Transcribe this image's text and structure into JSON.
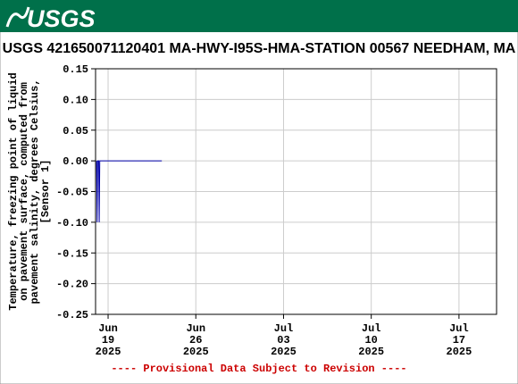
{
  "banner": "USGS",
  "chart_data": {
    "type": "line",
    "title": "USGS 421650071120401 MA-HWY-I95S-HMA-STATION 00567 NEEDHAM, MA",
    "ylabel": [
      "Temperature, freezing point of liquid",
      "on pavement surface, computed from",
      "pavement salinity, degrees Celsius,",
      "[Sensor 1]"
    ],
    "footer": "---- Provisional Data Subject to Revision ----",
    "series": [
      {
        "color": "#0000aa",
        "x": [
          "2025-06-18T02:00",
          "2025-06-18T03:00",
          "2025-06-18T04:00",
          "2025-06-18T06:00",
          "2025-06-18T07:00",
          "2025-06-18T08:00",
          "2025-06-23T07:00"
        ],
        "values": [
          0,
          -0.1,
          0,
          0,
          -0.1,
          0,
          0
        ]
      }
    ],
    "xlim": [
      "2025-06-18T00:00",
      "2025-07-20T00:00"
    ],
    "xticks": [
      {
        "value": "2025-06-19T00:00",
        "label": [
          "Jun",
          "19",
          "2025"
        ]
      },
      {
        "value": "2025-06-26T00:00",
        "label": [
          "Jun",
          "26",
          "2025"
        ]
      },
      {
        "value": "2025-07-03T00:00",
        "label": [
          "Jul",
          "03",
          "2025"
        ]
      },
      {
        "value": "2025-07-10T00:00",
        "label": [
          "Jul",
          "10",
          "2025"
        ]
      },
      {
        "value": "2025-07-17T00:00",
        "label": [
          "Jul",
          "17",
          "2025"
        ]
      }
    ],
    "ylim": [
      -0.25,
      0.15
    ],
    "yticks": [
      {
        "value": 0.15,
        "label": "0.15"
      },
      {
        "value": 0.1,
        "label": "0.10"
      },
      {
        "value": 0.05,
        "label": "0.05"
      },
      {
        "value": 0,
        "label": "0.00"
      },
      {
        "value": -0.05,
        "label": "-0.05"
      },
      {
        "value": -0.1,
        "label": "-0.10"
      },
      {
        "value": -0.15,
        "label": "-0.15"
      },
      {
        "value": -0.2,
        "label": "-0.20"
      },
      {
        "value": -0.25,
        "label": "-0.25"
      }
    ],
    "grid": true
  }
}
